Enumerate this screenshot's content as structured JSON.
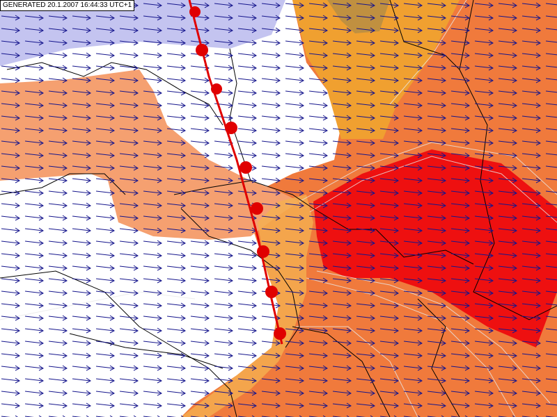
{
  "label": "GENERATED 20.1.2007 16:44:33 UTC+1"
}
